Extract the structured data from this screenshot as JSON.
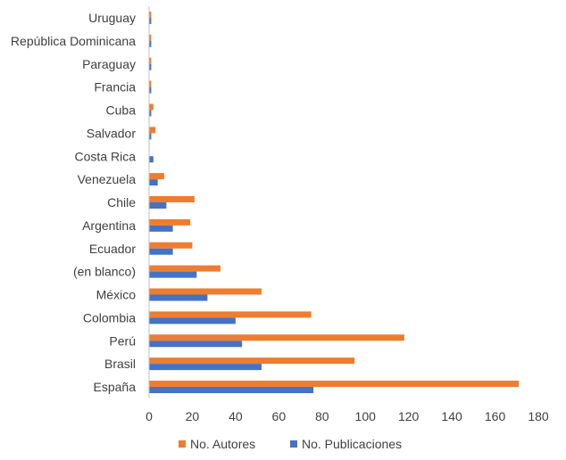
{
  "chart_data": {
    "type": "bar",
    "orientation": "horizontal",
    "categories": [
      "España",
      "Brasil",
      "Perú",
      "Colombia",
      "México",
      "(en blanco)",
      "Ecuador",
      "Argentina",
      "Chile",
      "Venezuela",
      "Costa Rica",
      "Salvador",
      "Cuba",
      "Francia",
      "Paraguay",
      "República Dominicana",
      "Uruguay"
    ],
    "series": [
      {
        "name": "No. Autores",
        "color": "#ED7D31",
        "values": [
          171,
          95,
          118,
          75,
          52,
          33,
          20,
          19,
          21,
          7,
          0,
          3,
          2,
          1,
          1,
          1,
          1
        ]
      },
      {
        "name": "No. Publicaciones",
        "color": "#4472C4",
        "values": [
          76,
          52,
          43,
          40,
          27,
          22,
          11,
          11,
          8,
          4,
          2,
          1,
          1,
          1,
          1,
          1,
          1
        ]
      }
    ],
    "xlim": [
      0,
      180
    ],
    "xticks": [
      "0",
      "20",
      "40",
      "60",
      "80",
      "100",
      "120",
      "140",
      "160",
      "180"
    ],
    "title": "",
    "xlabel": "",
    "ylabel": "",
    "grid": false,
    "legend_position": "bottom"
  }
}
